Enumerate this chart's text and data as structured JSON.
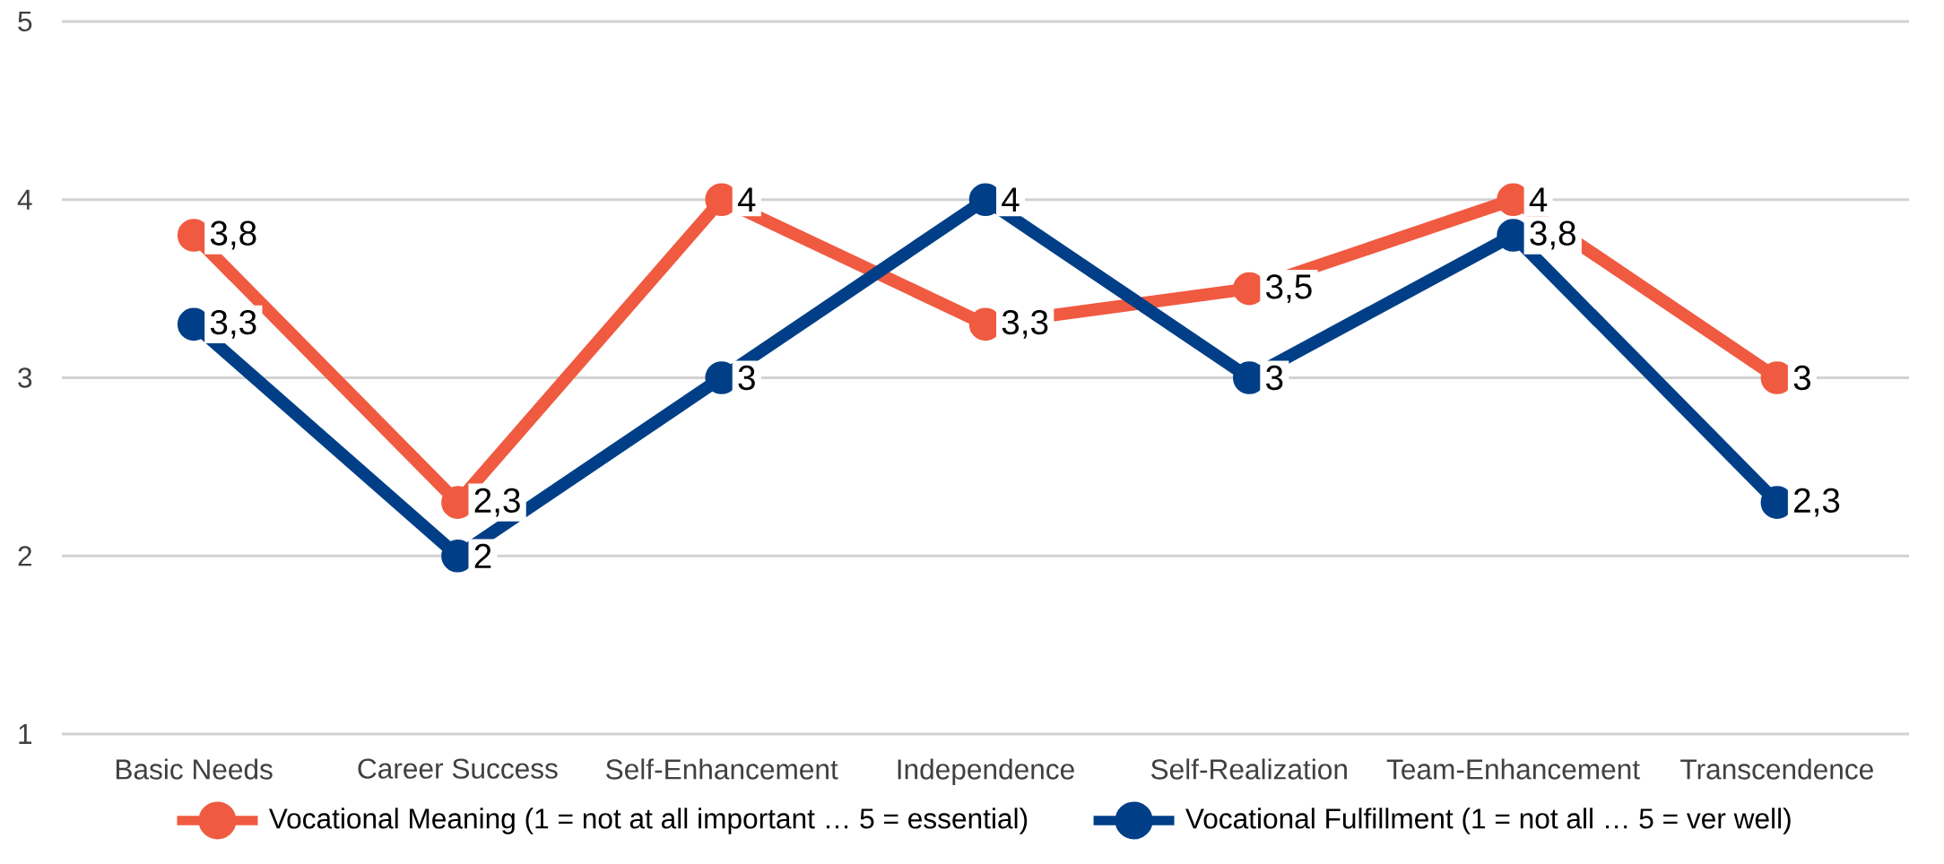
{
  "chart_data": {
    "type": "line",
    "categories": [
      "Basic Needs",
      "Career Success",
      "Self-Enhancement",
      "Independence",
      "Self-Realization",
      "Team-Enhancement",
      "Transcendence"
    ],
    "series": [
      {
        "name": "Vocational Meaning (1 = not at all important … 5 = essential)",
        "color": "#f05a40",
        "values": [
          3.8,
          2.3,
          4,
          3.3,
          3.5,
          4,
          3
        ],
        "value_labels": [
          "3,8",
          "2,3",
          "4",
          "3,3",
          "3,5",
          "4",
          "3"
        ]
      },
      {
        "name": "Vocational Fulfillment (1 = not all … 5 = ver well)",
        "color": "#003f87",
        "values": [
          3.3,
          2,
          3,
          4,
          3,
          3.8,
          2.3
        ],
        "value_labels": [
          "3,3",
          "2",
          "3",
          "4",
          "3",
          "3,8",
          "2,3"
        ]
      }
    ],
    "ylim": [
      1,
      5
    ],
    "yticks": [
      1,
      2,
      3,
      4,
      5
    ],
    "grid": "y",
    "legend": "bottom",
    "marker": "circle",
    "line_style": "solid"
  }
}
